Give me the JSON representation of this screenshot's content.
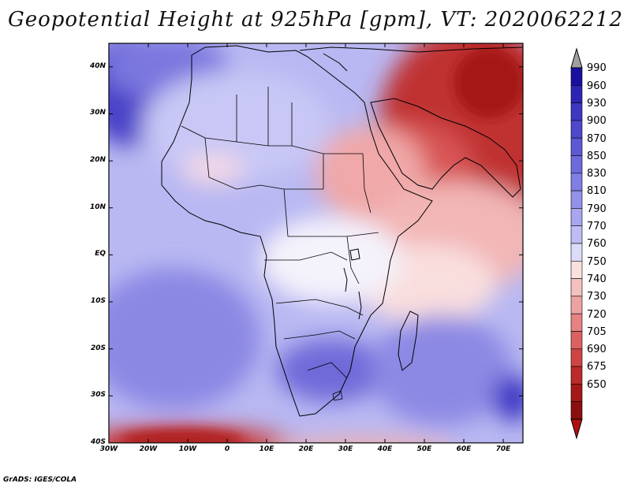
{
  "title": "Geopotential Height at 925hPa [gpm], VT: 2020062212",
  "credit": "GrADS: IGES/COLA",
  "map": {
    "region": "Africa and Arabian Peninsula",
    "variable": "Geopotential Height",
    "level": "925hPa",
    "units": "gpm",
    "valid_time": "2020062212",
    "lon_range": [
      -30,
      75
    ],
    "lat_range": [
      -40,
      45
    ]
  },
  "axes": {
    "lat_labels": [
      "40N",
      "30N",
      "20N",
      "10N",
      "EQ",
      "10S",
      "20S",
      "30S",
      "40S"
    ],
    "lon_labels": [
      "30W",
      "20W",
      "10W",
      "0",
      "10E",
      "20E",
      "30E",
      "40E",
      "50E",
      "60E",
      "70E"
    ]
  },
  "colorbar": {
    "levels": [
      "990",
      "960",
      "930",
      "900",
      "870",
      "850",
      "830",
      "810",
      "790",
      "770",
      "760",
      "750",
      "740",
      "730",
      "720",
      "705",
      "690",
      "675",
      "650"
    ],
    "colors": [
      "#1a0fa0",
      "#2e24b4",
      "#3f36c2",
      "#4f47cc",
      "#5e58d4",
      "#6e6adb",
      "#807ee2",
      "#9391e8",
      "#a7a6ee",
      "#bdbcf4",
      "#dcdcf9",
      "#fbe0e0",
      "#f4c0c0",
      "#eda2a2",
      "#e68282",
      "#dc6262",
      "#ce4444",
      "#bc2a2a",
      "#a51818",
      "#8a0e0e"
    ],
    "top_arrow_color": "#a0a0a0",
    "bottom_arrow_color": "#b01010"
  }
}
